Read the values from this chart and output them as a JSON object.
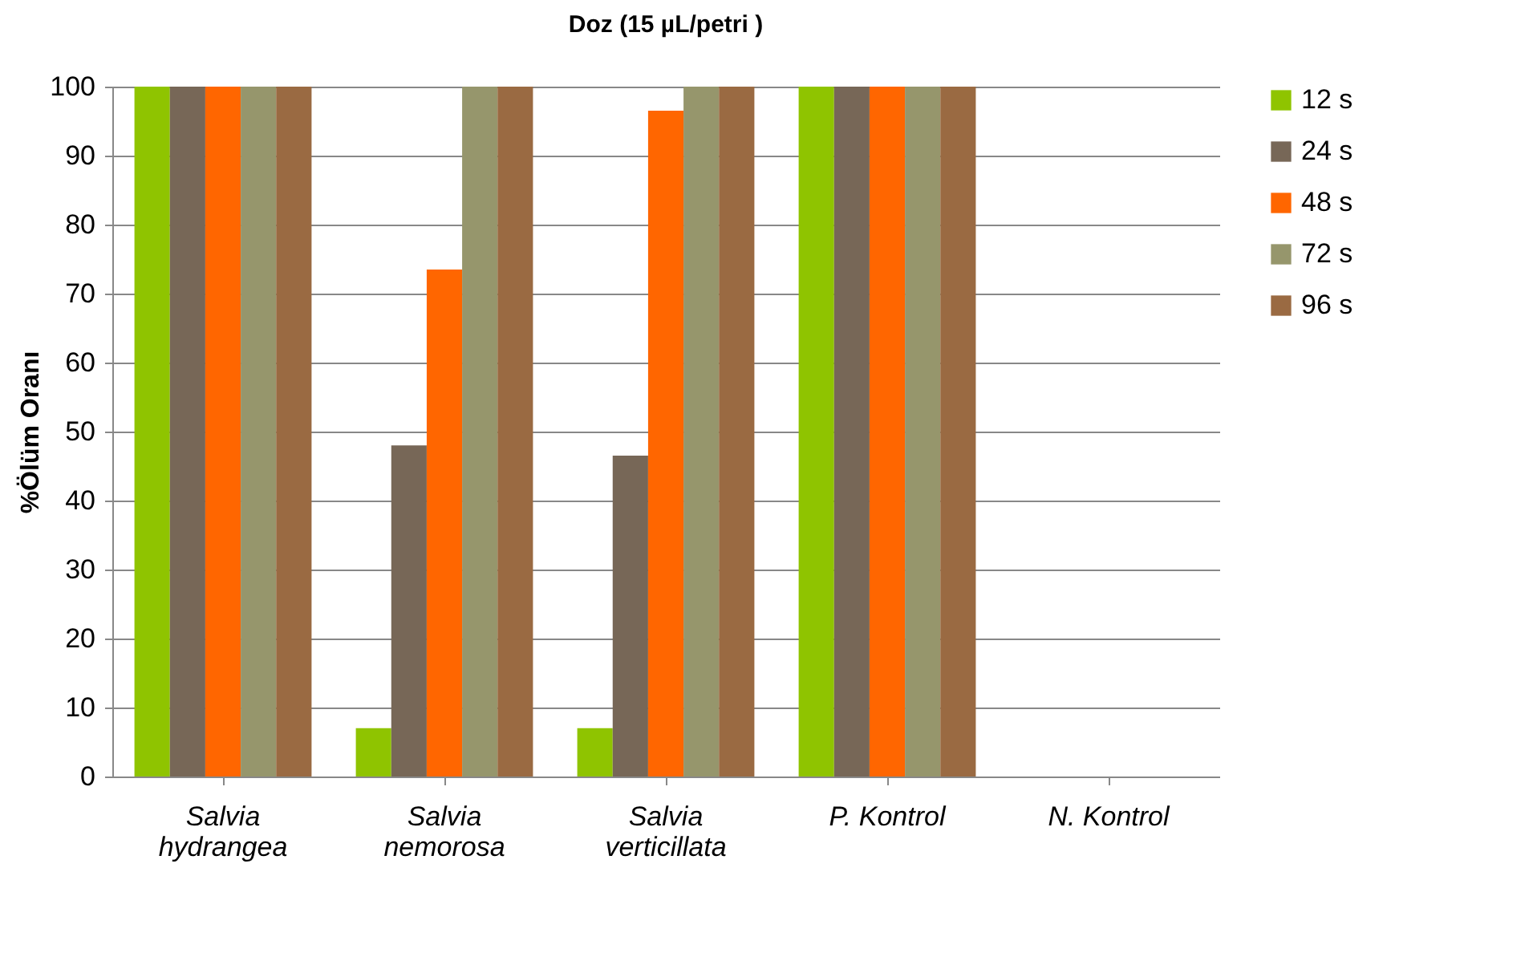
{
  "chart_data": {
    "type": "bar",
    "title": "Doz (15 µL/petri )",
    "ylabel": "%Ölüm Oranı",
    "categories": [
      "Salvia hydrangea",
      "Salvia nemorosa",
      "Salvia verticillata",
      "P. Kontrol",
      "N. Kontrol"
    ],
    "series": [
      {
        "name": "12 s",
        "color": "#8fc400",
        "values": [
          100,
          7,
          7,
          100,
          0
        ]
      },
      {
        "name": "24 s",
        "color": "#776757",
        "values": [
          100,
          48,
          46.5,
          100,
          0
        ]
      },
      {
        "name": "48 s",
        "color": "#ff6600",
        "values": [
          100,
          73.5,
          96.5,
          100,
          0
        ]
      },
      {
        "name": "72 s",
        "color": "#96966c",
        "values": [
          100,
          100,
          100,
          100,
          0
        ]
      },
      {
        "name": "96 s",
        "color": "#9a6a42",
        "values": [
          100,
          100,
          100,
          100,
          0
        ]
      }
    ],
    "ylim": [
      0,
      100
    ],
    "yticks": [
      0,
      10,
      20,
      30,
      40,
      50,
      60,
      70,
      80,
      90,
      100
    ],
    "grid": "y",
    "legend": "right"
  }
}
